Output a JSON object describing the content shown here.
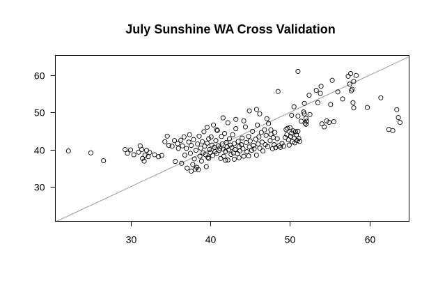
{
  "chart_data": {
    "type": "scatter",
    "title": "July Sunshine WA Cross Validation",
    "xlabel": "",
    "ylabel": "",
    "xlim": [
      20.6,
      64.9
    ],
    "ylim": [
      20.8,
      65.2
    ],
    "xticks": [
      30,
      40,
      50,
      60
    ],
    "yticks": [
      30,
      40,
      50,
      60
    ],
    "reference_line": {
      "type": "identity",
      "color": "#9a9a9a"
    },
    "points": [
      [
        22.2,
        39.6
      ],
      [
        25.0,
        39.1
      ],
      [
        26.6,
        37.0
      ],
      [
        29.3,
        40.0
      ],
      [
        29.6,
        39.0
      ],
      [
        30.0,
        39.9
      ],
      [
        30.4,
        38.6
      ],
      [
        31.0,
        39.3
      ],
      [
        31.2,
        41.0
      ],
      [
        31.4,
        40.0
      ],
      [
        31.5,
        37.6
      ],
      [
        31.7,
        36.9
      ],
      [
        31.8,
        38.5
      ],
      [
        32.0,
        39.8
      ],
      [
        32.2,
        38.1
      ],
      [
        32.4,
        39.2
      ],
      [
        33.0,
        38.6
      ],
      [
        33.5,
        38.1
      ],
      [
        33.9,
        38.4
      ],
      [
        34.3,
        42.1
      ],
      [
        34.6,
        43.6
      ],
      [
        34.8,
        41.1
      ],
      [
        35.2,
        40.9
      ],
      [
        35.5,
        42.4
      ],
      [
        35.6,
        36.8
      ],
      [
        35.9,
        41.6
      ],
      [
        36.0,
        40.3
      ],
      [
        36.3,
        42.5
      ],
      [
        36.5,
        41.0
      ],
      [
        36.7,
        43.4
      ],
      [
        36.8,
        38.5
      ],
      [
        37.0,
        40.3
      ],
      [
        37.1,
        35.0
      ],
      [
        37.3,
        42.0
      ],
      [
        37.4,
        44.0
      ],
      [
        37.5,
        39.0
      ],
      [
        37.6,
        41.1
      ],
      [
        37.8,
        36.0
      ],
      [
        37.9,
        42.7
      ],
      [
        38.0,
        37.5
      ],
      [
        38.1,
        34.7
      ],
      [
        38.2,
        39.8
      ],
      [
        38.3,
        35.2
      ],
      [
        38.4,
        41.5
      ],
      [
        38.6,
        43.6
      ],
      [
        38.7,
        38.2
      ],
      [
        38.8,
        40.4
      ],
      [
        38.9,
        36.9
      ],
      [
        39.0,
        42.1
      ],
      [
        39.1,
        39.1
      ],
      [
        39.2,
        44.8
      ],
      [
        39.3,
        40.9
      ],
      [
        39.4,
        38.6
      ],
      [
        39.5,
        35.4
      ],
      [
        39.6,
        41.7
      ],
      [
        39.7,
        37.9
      ],
      [
        39.8,
        42.9
      ],
      [
        39.9,
        40.0
      ],
      [
        40.0,
        39.2
      ],
      [
        40.1,
        43.4
      ],
      [
        40.2,
        41.2
      ],
      [
        40.3,
        38.4
      ],
      [
        40.4,
        46.6
      ],
      [
        40.5,
        40.6
      ],
      [
        40.6,
        39.4
      ],
      [
        40.7,
        42.4
      ],
      [
        40.8,
        38.9
      ],
      [
        40.9,
        45.1
      ],
      [
        41.0,
        41.0
      ],
      [
        41.1,
        39.8
      ],
      [
        41.2,
        40.3
      ],
      [
        41.3,
        37.6
      ],
      [
        41.4,
        43.5
      ],
      [
        41.5,
        41.5
      ],
      [
        41.6,
        40.1
      ],
      [
        41.7,
        38.2
      ],
      [
        41.8,
        44.3
      ],
      [
        41.9,
        39.5
      ],
      [
        42.0,
        41.9
      ],
      [
        42.1,
        40.7
      ],
      [
        42.2,
        37.2
      ],
      [
        42.3,
        39.9
      ],
      [
        42.4,
        42.9
      ],
      [
        42.5,
        41.2
      ],
      [
        42.6,
        38.7
      ],
      [
        42.7,
        40.5
      ],
      [
        42.8,
        44.0
      ],
      [
        42.9,
        39.1
      ],
      [
        43.0,
        41.6
      ],
      [
        43.1,
        40.0
      ],
      [
        43.2,
        45.6
      ],
      [
        43.4,
        38.9
      ],
      [
        43.5,
        42.2
      ],
      [
        43.6,
        40.8
      ],
      [
        43.7,
        39.6
      ],
      [
        43.9,
        41.3
      ],
      [
        44.0,
        43.1
      ],
      [
        44.1,
        40.2
      ],
      [
        44.2,
        38.2
      ],
      [
        44.4,
        46.1
      ],
      [
        44.5,
        41.9
      ],
      [
        44.6,
        39.4
      ],
      [
        44.8,
        43.5
      ],
      [
        44.9,
        40.7
      ],
      [
        45.0,
        42.3
      ],
      [
        45.2,
        39.8
      ],
      [
        45.3,
        44.9
      ],
      [
        45.4,
        41.1
      ],
      [
        45.5,
        40.2
      ],
      [
        45.7,
        42.8
      ],
      [
        45.8,
        38.5
      ],
      [
        45.9,
        46.6
      ],
      [
        46.0,
        41.5
      ],
      [
        46.1,
        43.4
      ],
      [
        46.2,
        40.4
      ],
      [
        46.4,
        44.6
      ],
      [
        46.5,
        42.0
      ],
      [
        46.6,
        39.6
      ],
      [
        46.8,
        45.3
      ],
      [
        46.9,
        41.3
      ],
      [
        47.0,
        43.8
      ],
      [
        47.2,
        40.8
      ],
      [
        47.3,
        47.0
      ],
      [
        47.5,
        42.4
      ],
      [
        47.6,
        44.1
      ],
      [
        47.8,
        40.2
      ],
      [
        47.9,
        43.2
      ],
      [
        48.0,
        41.3
      ],
      [
        48.2,
        40.5
      ],
      [
        48.4,
        42.9
      ],
      [
        48.6,
        41.0
      ],
      [
        48.8,
        40.6
      ],
      [
        49.0,
        41.7
      ],
      [
        49.2,
        40.9
      ],
      [
        36.4,
        36.3
      ],
      [
        37.6,
        34.2
      ],
      [
        38.5,
        34.6
      ],
      [
        39.8,
        37.6
      ],
      [
        41.9,
        37.1
      ],
      [
        43.0,
        37.4
      ],
      [
        43.6,
        37.8
      ],
      [
        44.8,
        38.3
      ],
      [
        39.6,
        46.0
      ],
      [
        40.8,
        45.3
      ],
      [
        41.6,
        48.5
      ],
      [
        42.2,
        47.2
      ],
      [
        43.2,
        48.1
      ],
      [
        44.2,
        47.7
      ],
      [
        44.9,
        50.4
      ],
      [
        45.8,
        50.8
      ],
      [
        46.2,
        49.6
      ],
      [
        47.1,
        48.3
      ],
      [
        48.5,
        55.6
      ],
      [
        47.6,
        45.3
      ],
      [
        48.1,
        44.6
      ],
      [
        49.5,
        45.4
      ],
      [
        49.6,
        44.0
      ],
      [
        49.8,
        42.6
      ],
      [
        49.9,
        41.2
      ],
      [
        50.0,
        45.9
      ],
      [
        50.1,
        43.5
      ],
      [
        50.2,
        44.4
      ],
      [
        50.3,
        42.1
      ],
      [
        50.4,
        45.0
      ],
      [
        50.5,
        43.1
      ],
      [
        50.6,
        41.8
      ],
      [
        50.7,
        44.8
      ],
      [
        50.8,
        43.9
      ],
      [
        50.9,
        42.4
      ],
      [
        51.0,
        44.9
      ],
      [
        51.1,
        43.0
      ],
      [
        51.2,
        42.2
      ],
      [
        49.4,
        43.2
      ],
      [
        49.7,
        45.7
      ],
      [
        50.2,
        49.2
      ],
      [
        50.5,
        51.5
      ],
      [
        51.0,
        49.0
      ],
      [
        51.4,
        47.6
      ],
      [
        51.0,
        61.0
      ],
      [
        51.7,
        50.1
      ],
      [
        51.8,
        49.6
      ],
      [
        52.0,
        46.8
      ],
      [
        51.8,
        52.4
      ],
      [
        51.9,
        47.1
      ],
      [
        52.0,
        48.4
      ],
      [
        52.1,
        47.6
      ],
      [
        52.4,
        54.6
      ],
      [
        52.5,
        49.4
      ],
      [
        53.3,
        55.9
      ],
      [
        53.5,
        52.6
      ],
      [
        53.8,
        55.1
      ],
      [
        53.9,
        57.0
      ],
      [
        54.0,
        46.9
      ],
      [
        54.3,
        46.1
      ],
      [
        54.6,
        47.7
      ],
      [
        54.9,
        47.3
      ],
      [
        55.1,
        52.1
      ],
      [
        55.3,
        58.6
      ],
      [
        55.5,
        47.5
      ],
      [
        56.0,
        55.5
      ],
      [
        56.6,
        53.6
      ],
      [
        57.3,
        59.7
      ],
      [
        57.5,
        57.6
      ],
      [
        57.6,
        60.4
      ],
      [
        57.7,
        55.8
      ],
      [
        57.8,
        56.2
      ],
      [
        57.9,
        52.6
      ],
      [
        58.0,
        51.2
      ],
      [
        58.0,
        58.3
      ],
      [
        58.3,
        59.9
      ],
      [
        59.7,
        51.3
      ],
      [
        61.4,
        53.9
      ],
      [
        62.4,
        45.4
      ],
      [
        62.9,
        45.1
      ],
      [
        63.4,
        50.7
      ],
      [
        63.6,
        48.6
      ],
      [
        63.8,
        47.3
      ]
    ]
  }
}
